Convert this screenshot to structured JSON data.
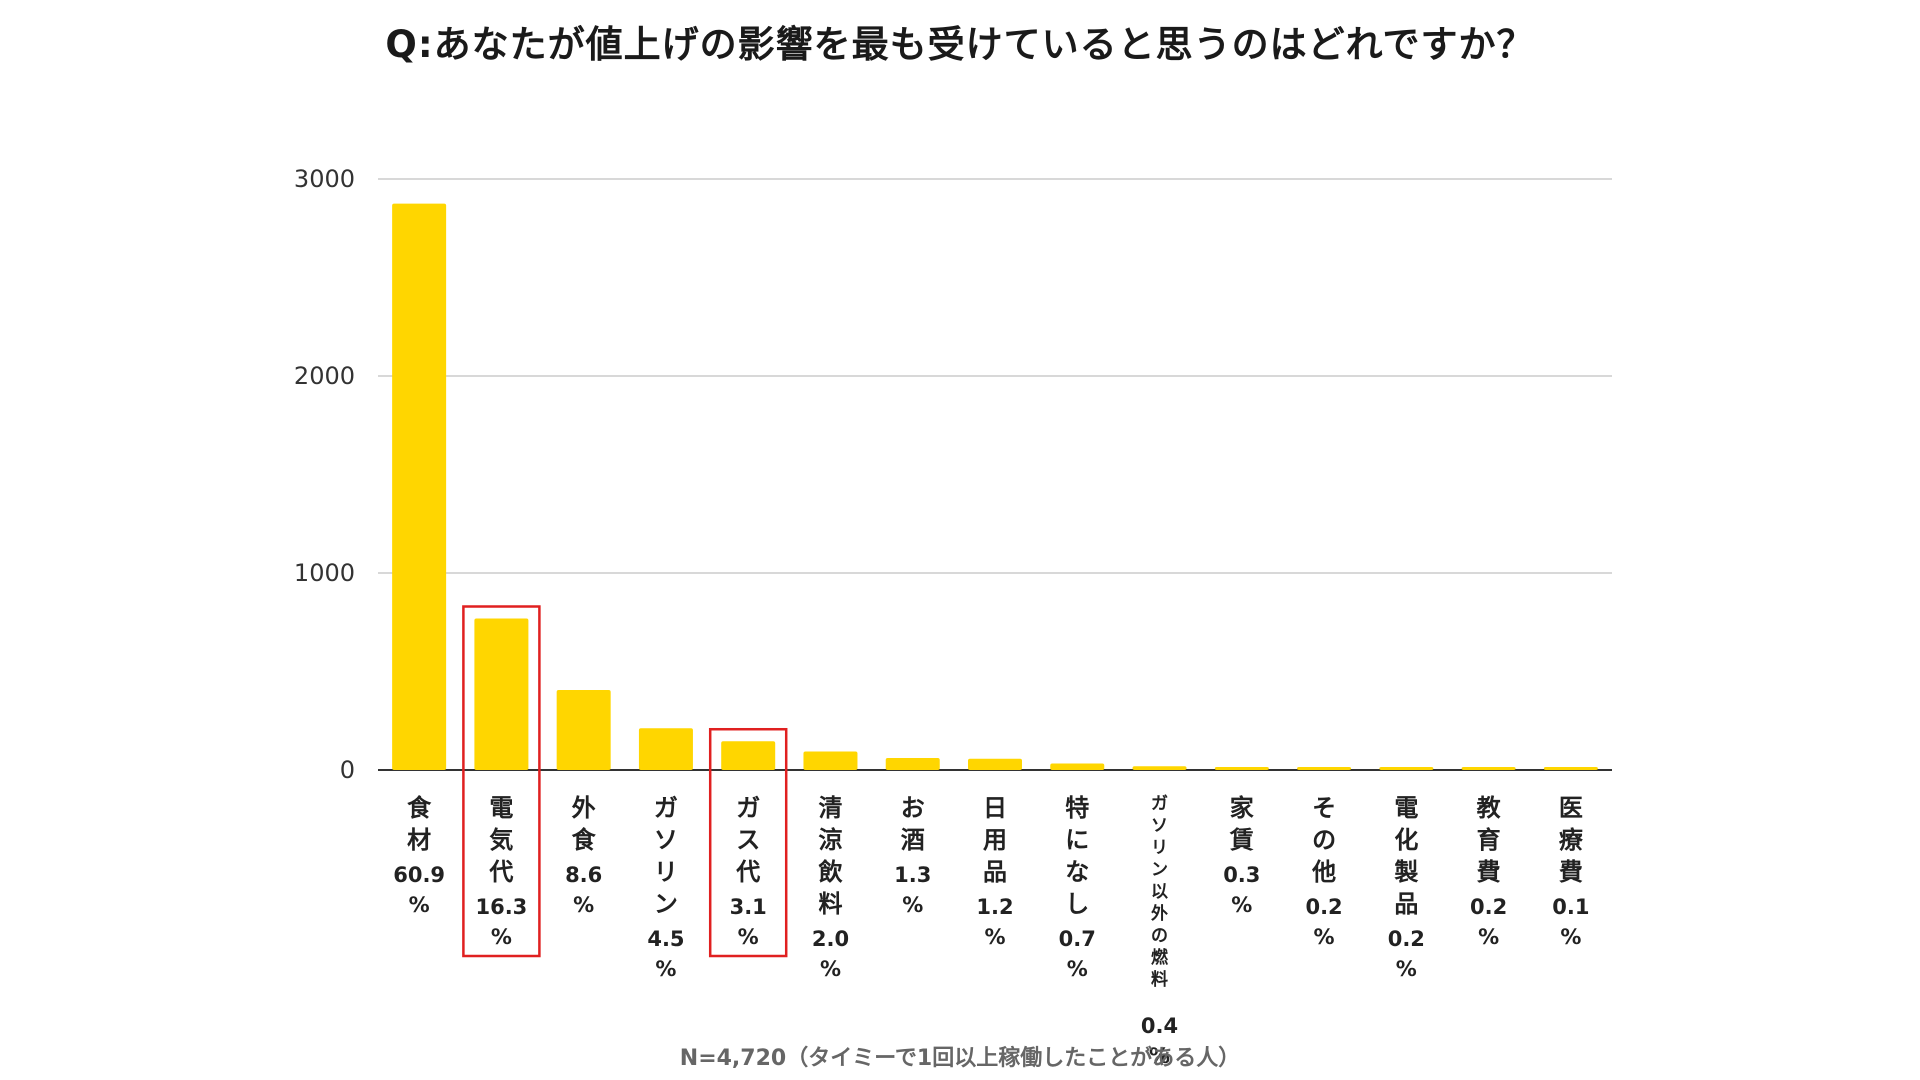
{
  "chart_data": {
    "type": "bar",
    "title": "Q:あなたが値上げの影響を最も受けていると思うのはどれですか？",
    "footnote": "N=4,720（タイミーで1回以上稼働したことがある人）",
    "ylim": [
      0,
      3000
    ],
    "yticks": [
      "0",
      "1000",
      "2000",
      "3000"
    ],
    "grid": true,
    "bar_color": "#FFD600",
    "highlight_color": "#E02020",
    "categories": [
      "食材",
      "電気代",
      "外食",
      "ガソリン",
      "ガス代",
      "清涼飲料",
      "お酒",
      "日用品",
      "特になし",
      "ガソリン以外の燃料",
      "家賃",
      "その他",
      "電化製品",
      "教育費",
      "医療費"
    ],
    "values": [
      2875,
      769,
      406,
      212,
      146,
      94,
      61,
      57,
      33,
      19,
      14,
      9,
      9,
      9,
      5
    ],
    "percent_labels": [
      "60.9%",
      "16.3%",
      "8.6%",
      "4.5%",
      "3.1%",
      "2.0%",
      "1.3%",
      "1.2%",
      "0.7%",
      "0.4%",
      "0.3%",
      "0.2%",
      "0.2%",
      "0.2%",
      "0.1%"
    ],
    "highlighted": [
      "電気代",
      "ガス代"
    ]
  }
}
